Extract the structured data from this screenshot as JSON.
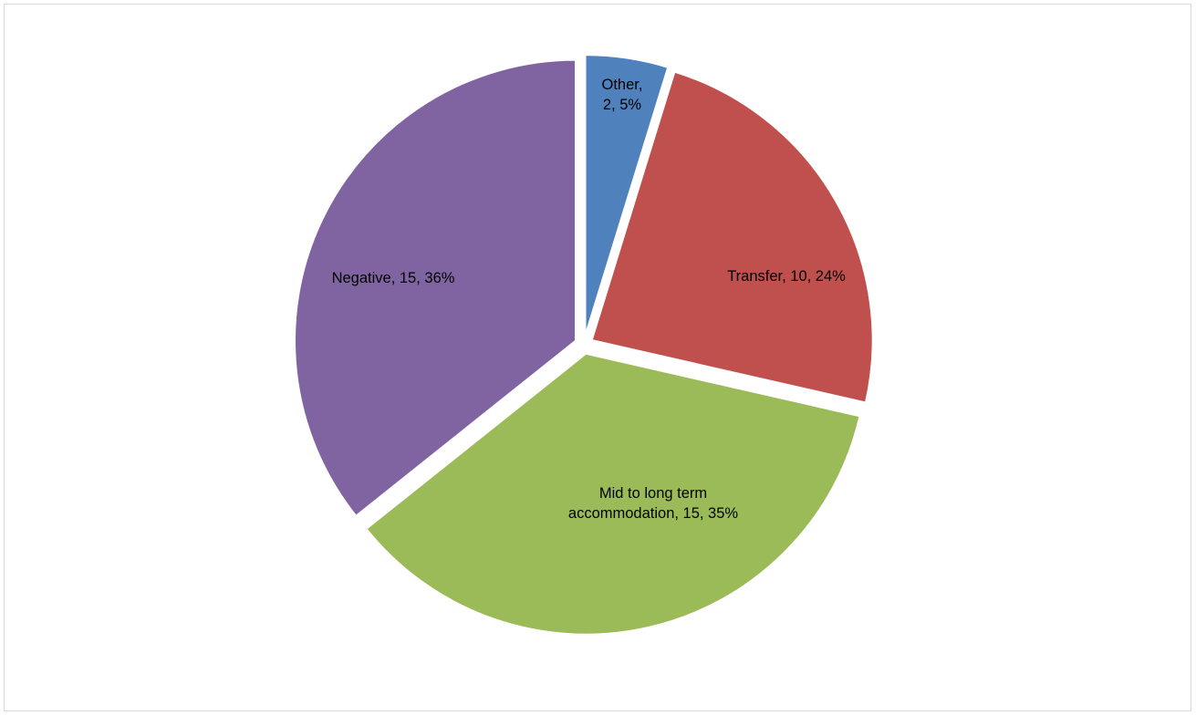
{
  "chart_data": {
    "type": "pie",
    "title": "",
    "slices": [
      {
        "label": "Other",
        "value": 2,
        "percent": "5%",
        "color": "#4f81bd",
        "label_lines": [
          "Other,",
          "2, 5%"
        ]
      },
      {
        "label": "Transfer",
        "value": 10,
        "percent": "24%",
        "color": "#c0504d",
        "label_lines": [
          "Transfer, 10, 24%"
        ]
      },
      {
        "label": "Mid to long term accommodation",
        "value": 15,
        "percent": "35%",
        "color": "#9bbb59",
        "label_lines": [
          "Mid to long term",
          "accommodation, 15, 35%"
        ]
      },
      {
        "label": "Negative",
        "value": 15,
        "percent": "36%",
        "color": "#8064a2",
        "label_lines": [
          "Negative, 15, 36%"
        ]
      }
    ],
    "slice_shares": [
      0.0476,
      0.2381,
      0.3571,
      0.3572
    ],
    "legend": "none",
    "exploded": true
  }
}
